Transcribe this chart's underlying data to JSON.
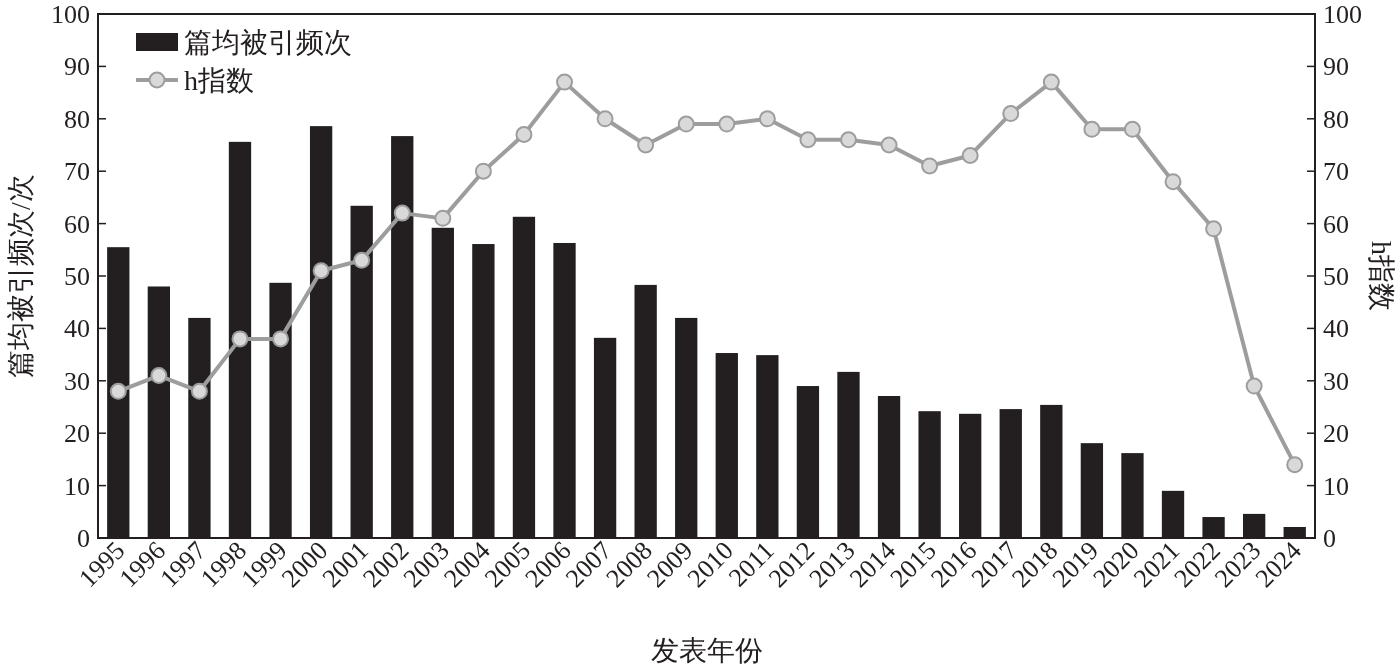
{
  "chart_data": {
    "type": "bar",
    "xlabel": "发表年份",
    "ylabel": "篇均被引频次/次",
    "y2label": "h指数",
    "categories": [
      "1995",
      "1996",
      "1997",
      "1998",
      "1999",
      "2000",
      "2001",
      "2002",
      "2003",
      "2004",
      "2005",
      "2006",
      "2007",
      "2008",
      "2009",
      "2010",
      "2011",
      "2012",
      "2013",
      "2014",
      "2015",
      "2016",
      "2017",
      "2018",
      "2019",
      "2020",
      "2021",
      "2022",
      "2023",
      "2024"
    ],
    "series": [
      {
        "name": "篇均被引频次",
        "color": "#231f20",
        "values": [
          55.5,
          48,
          42,
          75.6,
          48.7,
          78.6,
          63.4,
          76.7,
          59.2,
          56.1,
          61.3,
          56.3,
          38.2,
          48.3,
          42,
          35.3,
          34.9,
          29,
          31.7,
          27.1,
          24.2,
          23.7,
          24.6,
          25.4,
          18.1,
          16.2,
          9,
          4,
          4.6,
          2.1
        ]
      },
      {
        "name": "h指数",
        "type": "line",
        "axis": "y2",
        "color": "#9d9d9d",
        "marker": "circle",
        "values": [
          28,
          31,
          28,
          38,
          38,
          51,
          53,
          62,
          61,
          70,
          77,
          87,
          80,
          75,
          79,
          79,
          80,
          76,
          76,
          75,
          71,
          73,
          81,
          87,
          78,
          78,
          68,
          59,
          29,
          14
        ]
      }
    ],
    "ylim": [
      0,
      100
    ],
    "yticks": [
      0,
      10,
      20,
      30,
      40,
      50,
      60,
      70,
      80,
      90,
      100
    ],
    "y2lim": [
      0,
      100
    ],
    "y2ticks": [
      0,
      10,
      20,
      30,
      40,
      50,
      60,
      70,
      80,
      90,
      100
    ],
    "grid": false,
    "legend": "top left"
  }
}
